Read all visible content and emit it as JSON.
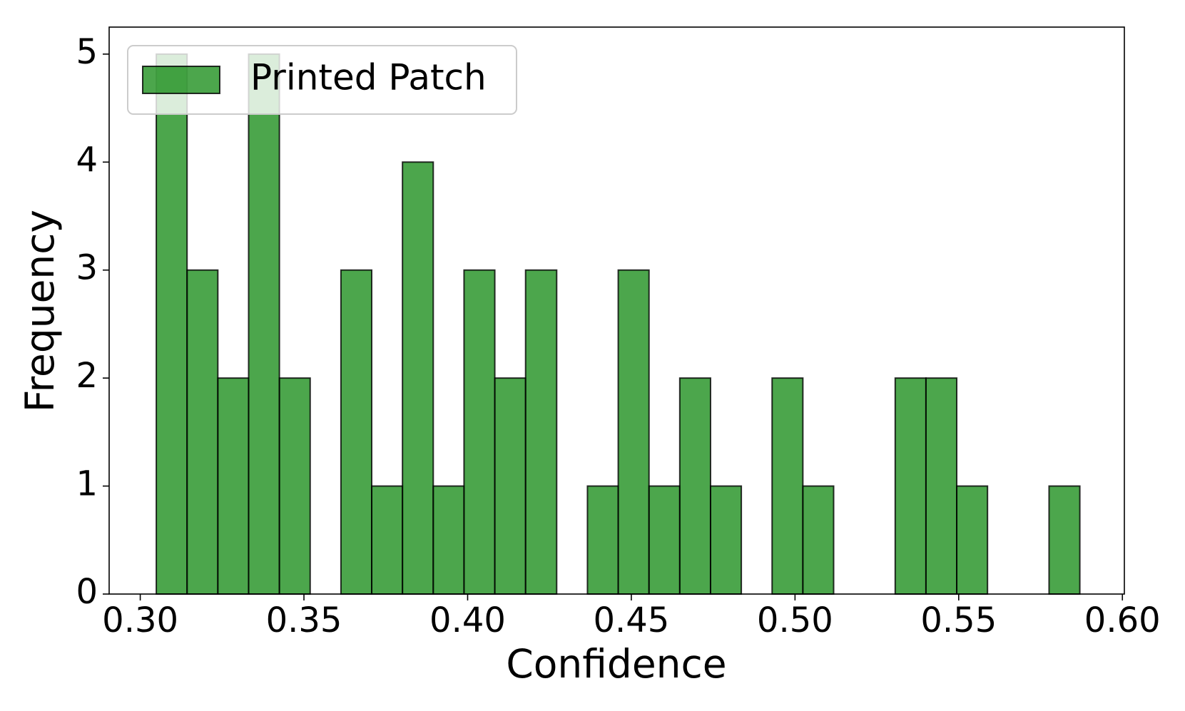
{
  "chart_data": {
    "type": "histogram",
    "xlabel": "Confidence",
    "ylabel": "Frequency",
    "series": [
      {
        "name": "Printed Patch",
        "color": "#008000",
        "alpha": 0.7,
        "edgecolor": "#000000",
        "bins": [
          0.3049,
          0.3143,
          0.3237,
          0.3331,
          0.3425,
          0.3519,
          0.3613,
          0.3707,
          0.3801,
          0.3895,
          0.3989,
          0.4083,
          0.4177,
          0.4272,
          0.4366,
          0.446,
          0.4554,
          0.4648,
          0.4742,
          0.4836,
          0.493,
          0.5024,
          0.5118,
          0.5212,
          0.5306,
          0.54,
          0.5494,
          0.5588,
          0.5682,
          0.5776,
          0.587
        ],
        "values": [
          5,
          3,
          2,
          5,
          2,
          0,
          3,
          1,
          4,
          1,
          3,
          2,
          3,
          0,
          1,
          3,
          1,
          2,
          1,
          0,
          2,
          1,
          0,
          0,
          2,
          2,
          1,
          0,
          0,
          1
        ]
      }
    ],
    "xlim": [
      0.2905,
      0.6006
    ],
    "xticks": [
      {
        "value": 0.3,
        "label": "0.30"
      },
      {
        "value": 0.35,
        "label": "0.35"
      },
      {
        "value": 0.4,
        "label": "0.40"
      },
      {
        "value": 0.45,
        "label": "0.45"
      },
      {
        "value": 0.5,
        "label": "0.50"
      },
      {
        "value": 0.55,
        "label": "0.55"
      },
      {
        "value": 0.6,
        "label": "0.60"
      }
    ],
    "ylim": [
      0,
      5.25
    ],
    "yticks": [
      0,
      1,
      2,
      3,
      4,
      5
    ],
    "legend": "upper left"
  }
}
